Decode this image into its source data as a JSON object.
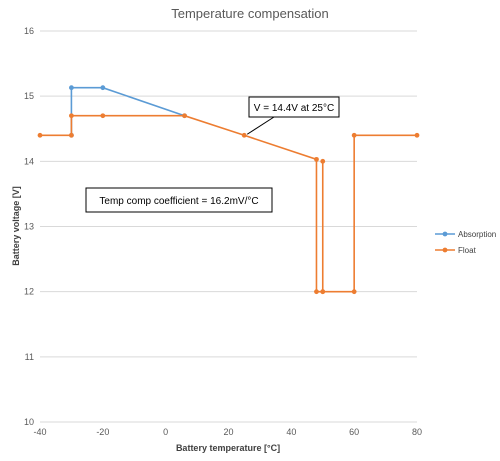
{
  "chart_data": {
    "type": "line",
    "title": "Temperature compensation",
    "xlabel": "Battery temperature [°C]",
    "ylabel": "Battery voltage [V]",
    "xlim": [
      -40,
      80
    ],
    "ylim": [
      10,
      16
    ],
    "xticks": [
      -40,
      -20,
      0,
      20,
      40,
      60,
      80
    ],
    "yticks": [
      10,
      11,
      12,
      13,
      14,
      15,
      16
    ],
    "grid": "horizontal",
    "legend_position": "right",
    "series": [
      {
        "name": "Absorption",
        "color": "#5B9BD5",
        "points": [
          [
            -30,
            14.4
          ],
          [
            -30,
            15.13
          ],
          [
            -20,
            15.13
          ],
          [
            6,
            14.7
          ]
        ]
      },
      {
        "name": "Float",
        "color": "#ED7D31",
        "points": [
          [
            -40,
            14.4
          ],
          [
            -30,
            14.4
          ],
          [
            -30,
            14.7
          ],
          [
            -20,
            14.7
          ],
          [
            6,
            14.7
          ],
          [
            25,
            14.4
          ],
          [
            48,
            14.03
          ],
          [
            48,
            12.0
          ],
          [
            50,
            12.0
          ],
          [
            50,
            14.0
          ],
          [
            50,
            12.0
          ],
          [
            60,
            12.0
          ],
          [
            60,
            14.4
          ],
          [
            80,
            14.4
          ]
        ]
      }
    ],
    "annotations": [
      {
        "text": "V = 14.4V at 25°C",
        "points_to": [
          25,
          14.4
        ]
      },
      {
        "text": "Temp comp coefficient = 16.2mV/°C"
      }
    ]
  }
}
